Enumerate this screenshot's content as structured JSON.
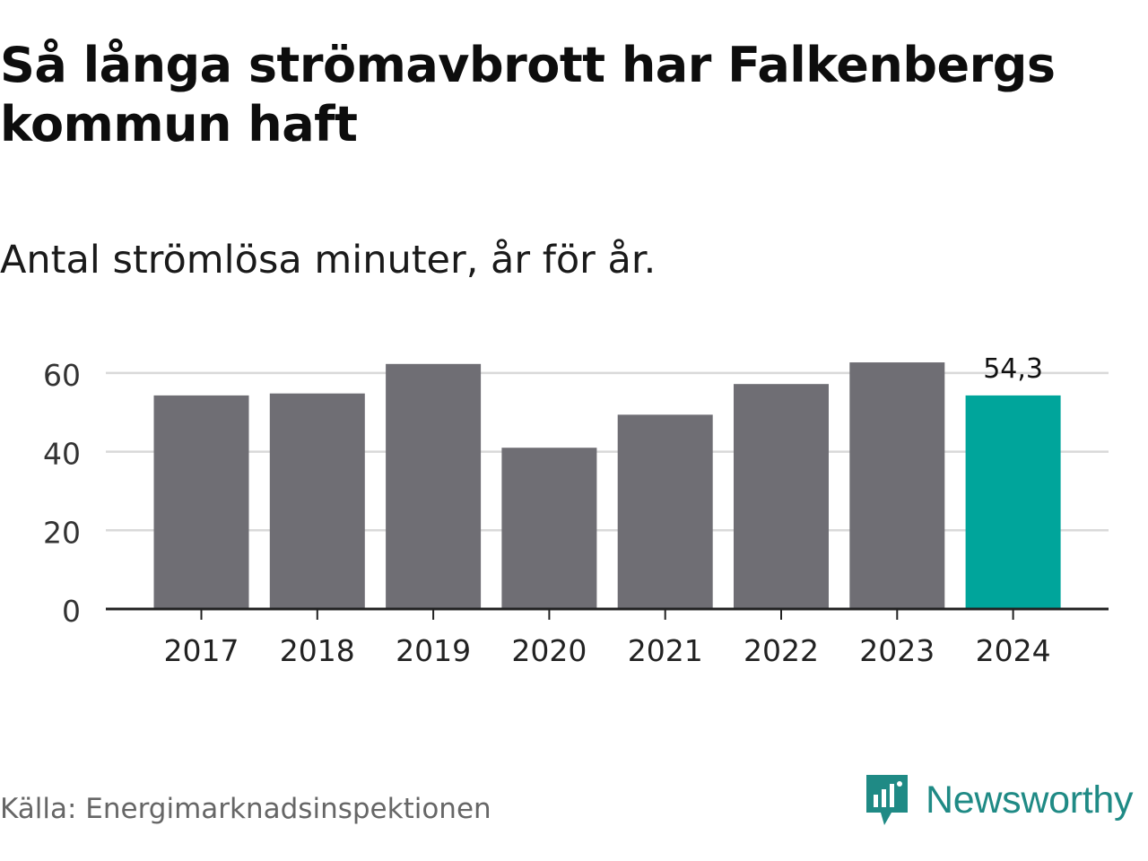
{
  "title": "Så långa strömavbrott har Falkenbergs kommun haft",
  "subtitle": "Antal strömlösa minuter, år för år.",
  "source": "Källa: Energimarknadsinspektionen",
  "brand": {
    "name": "Newsworthy",
    "icon": "newsworthy-logo-icon"
  },
  "colors": {
    "bar": "#6f6e74",
    "highlight": "#00a59b",
    "grid": "#d9d9d9",
    "axis": "#222222",
    "brand": "#1f8a85"
  },
  "chart_data": {
    "type": "bar",
    "categories": [
      "2017",
      "2018",
      "2019",
      "2020",
      "2021",
      "2022",
      "2023",
      "2024"
    ],
    "values": [
      54.3,
      54.8,
      62.3,
      41.0,
      49.4,
      57.2,
      62.7,
      54.3
    ],
    "highlight_index": 7,
    "data_labels": [
      {
        "index": 7,
        "text": "54,3"
      }
    ],
    "yticks": [
      "0",
      "20",
      "40",
      "60"
    ],
    "ylim": [
      0,
      60
    ],
    "grid": true,
    "xlabel": "",
    "ylabel": ""
  }
}
